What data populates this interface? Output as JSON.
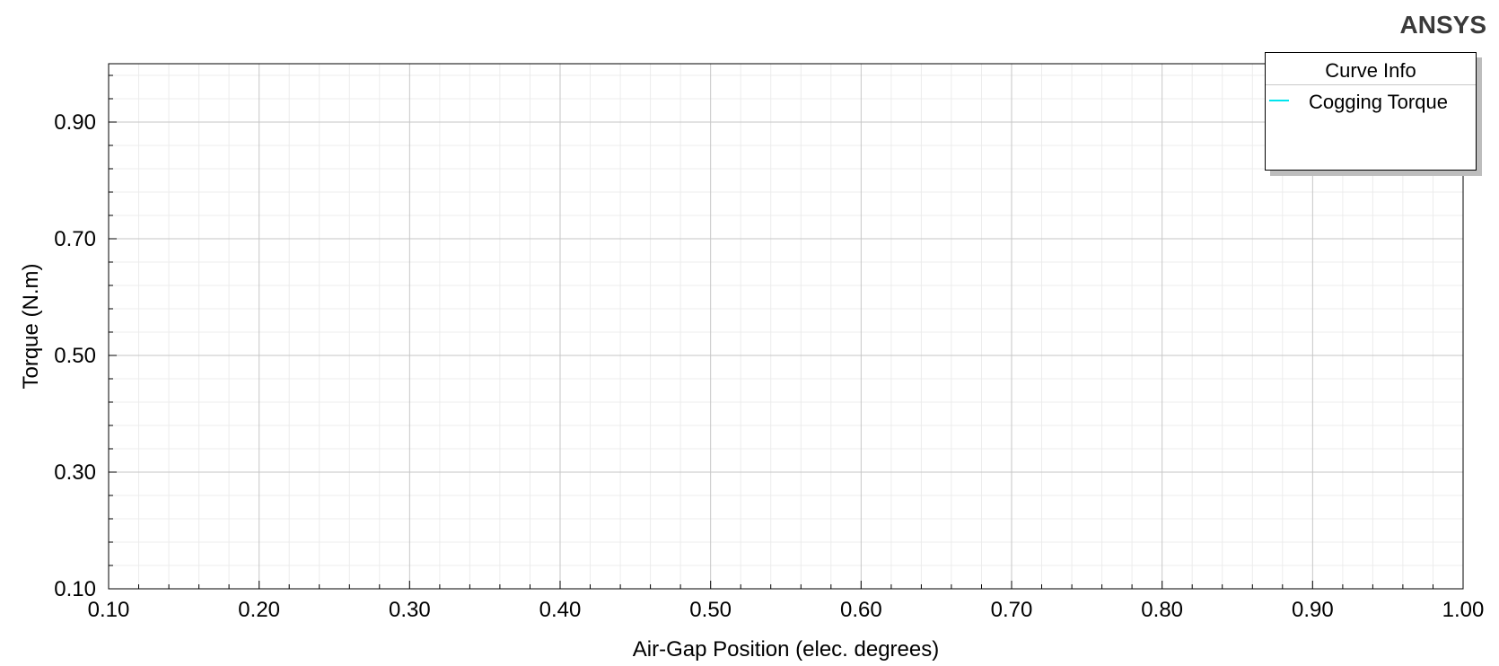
{
  "brand": "ANSYS",
  "legend": {
    "title": "Curve Info",
    "entries": [
      {
        "label": "Cogging Torque",
        "color": "#00e5ee"
      }
    ]
  },
  "chart_data": {
    "type": "line",
    "xlabel": "Air-Gap Position (elec. degrees)",
    "ylabel": "Torque (N.m)",
    "xlim": [
      0.1,
      1.0
    ],
    "ylim": [
      0.1,
      1.0
    ],
    "x_ticks": [
      "0.10",
      "0.20",
      "0.30",
      "0.40",
      "0.50",
      "0.60",
      "0.70",
      "0.80",
      "0.90",
      "1.00"
    ],
    "y_ticks": [
      "0.10",
      "0.30",
      "0.50",
      "0.70",
      "0.90"
    ],
    "grid": true,
    "legend_position": "top-right",
    "series": [
      {
        "name": "Cogging Torque",
        "color": "#00e5ee",
        "x": [],
        "y": []
      }
    ]
  }
}
